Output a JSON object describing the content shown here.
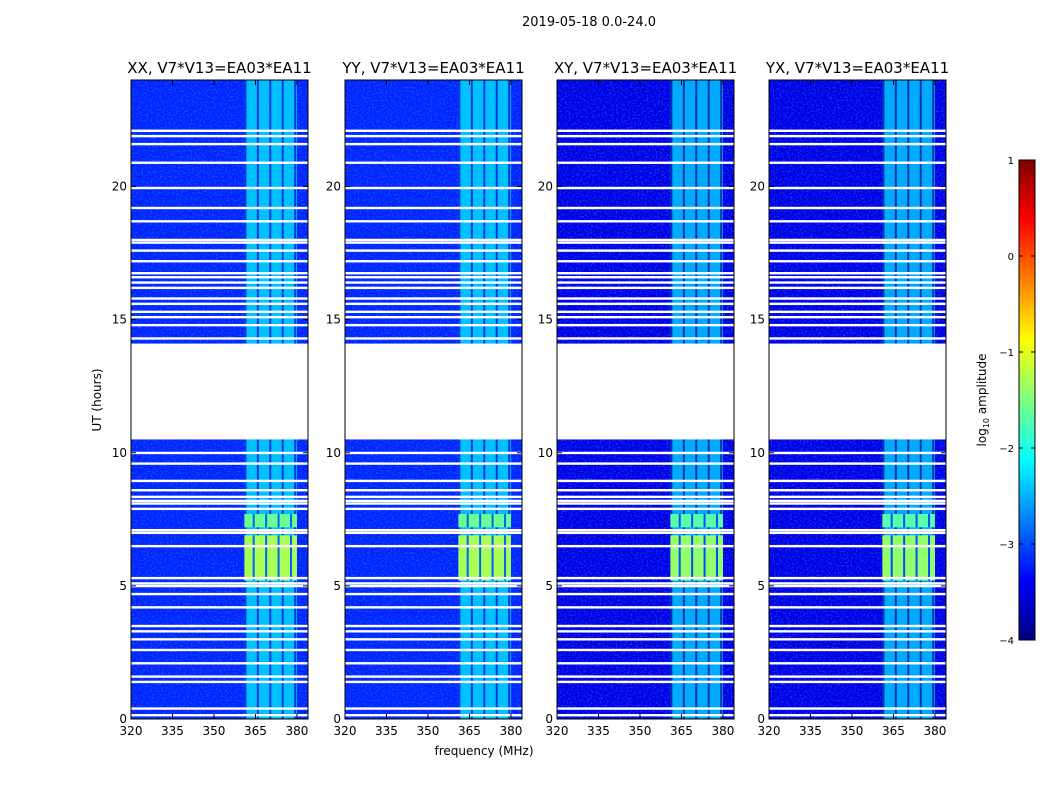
{
  "figure": {
    "suptitle": "2019-05-18 0.0-24.0",
    "xlabel": "frequency (MHz)",
    "ylabel": "UT (hours)"
  },
  "colorbar": {
    "label_prefix": "log",
    "label_sub": "10",
    "label_suffix": " amplitude",
    "range": [
      -4,
      1
    ],
    "ticks": [
      "1",
      "0",
      "−1",
      "−2",
      "−3",
      "−4"
    ],
    "tick_values": [
      1,
      0,
      -1,
      -2,
      -3,
      -4
    ],
    "colormap": "jet",
    "colors": [
      "#00007f",
      "#0000ff",
      "#007fff",
      "#00ffff",
      "#7fff7f",
      "#ffff00",
      "#ff7f00",
      "#ff0000",
      "#7f0000"
    ]
  },
  "chart_data": [
    {
      "type": "heatmap",
      "title": "XX, V7*V13=EA03*EA11",
      "xlabel": "frequency (MHz)",
      "ylabel": "UT (hours)",
      "xlim": [
        320,
        384
      ],
      "ylim": [
        0,
        24
      ],
      "xticks": [
        "320",
        "335",
        "350",
        "365",
        "380"
      ],
      "xtick_values": [
        320,
        335,
        350,
        365,
        380
      ],
      "yticks": [
        "0",
        "5",
        "10",
        "15",
        "20"
      ],
      "ytick_values": [
        0,
        5,
        10,
        15,
        20
      ],
      "z_label": "log10 amplitude",
      "background_level": -3.2,
      "rfi_band_mhz": [
        361,
        380
      ],
      "rfi_level": -2.3,
      "rfi_strong_hours": [
        [
          5.2,
          6.9,
          -1.3
        ],
        [
          7.2,
          7.7,
          -1.6
        ]
      ],
      "no_data_hours": [
        [
          10.5,
          14.1
        ]
      ],
      "flagged_hours": [
        0.15,
        0.4,
        1.4,
        1.6,
        2.1,
        2.6,
        3.0,
        3.3,
        3.5,
        4.2,
        4.7,
        5.0,
        5.1,
        5.3,
        6.5,
        7.0,
        7.1,
        7.9,
        8.1,
        8.2,
        8.35,
        8.6,
        8.95,
        9.6,
        10.0,
        14.3,
        14.8,
        15.1,
        15.3,
        15.6,
        15.8,
        16.2,
        16.4,
        16.6,
        16.75,
        17.2,
        17.6,
        17.9,
        18.0,
        18.7,
        19.2,
        19.95,
        20.9,
        21.6,
        21.9,
        22.1
      ]
    },
    {
      "type": "heatmap",
      "title": "YY, V7*V13=EA03*EA11",
      "xlabel": "frequency (MHz)",
      "ylabel": "UT (hours)",
      "xlim": [
        320,
        384
      ],
      "ylim": [
        0,
        24
      ],
      "xticks": [
        "320",
        "335",
        "350",
        "365",
        "380"
      ],
      "xtick_values": [
        320,
        335,
        350,
        365,
        380
      ],
      "yticks": [
        "0",
        "5",
        "10",
        "15",
        "20"
      ],
      "ytick_values": [
        0,
        5,
        10,
        15,
        20
      ],
      "z_label": "log10 amplitude",
      "background_level": -3.2,
      "rfi_band_mhz": [
        361,
        380
      ],
      "rfi_level": -2.3,
      "rfi_strong_hours": [
        [
          5.2,
          6.9,
          -1.3
        ],
        [
          7.2,
          7.7,
          -1.6
        ]
      ],
      "no_data_hours": [
        [
          10.5,
          14.1
        ]
      ],
      "flagged_hours": [
        0.15,
        0.4,
        1.4,
        1.6,
        2.1,
        2.6,
        3.0,
        3.3,
        3.5,
        4.2,
        4.7,
        5.0,
        5.1,
        5.3,
        6.5,
        7.0,
        7.1,
        7.9,
        8.1,
        8.2,
        8.35,
        8.6,
        8.95,
        9.6,
        10.0,
        14.3,
        14.8,
        15.1,
        15.3,
        15.6,
        15.8,
        16.2,
        16.4,
        16.6,
        16.75,
        17.2,
        17.6,
        17.9,
        18.0,
        18.7,
        19.2,
        19.95,
        20.9,
        21.6,
        21.9,
        22.1
      ]
    },
    {
      "type": "heatmap",
      "title": "XY, V7*V13=EA03*EA11",
      "xlabel": "frequency (MHz)",
      "ylabel": "UT (hours)",
      "xlim": [
        320,
        384
      ],
      "ylim": [
        0,
        24
      ],
      "xticks": [
        "320",
        "335",
        "350",
        "365",
        "380"
      ],
      "xtick_values": [
        320,
        335,
        350,
        365,
        380
      ],
      "yticks": [
        "0",
        "5",
        "10",
        "15",
        "20"
      ],
      "ytick_values": [
        0,
        5,
        10,
        15,
        20
      ],
      "z_label": "log10 amplitude",
      "background_level": -3.5,
      "rfi_band_mhz": [
        361,
        380
      ],
      "rfi_level": -2.4,
      "rfi_strong_hours": [
        [
          5.2,
          6.9,
          -1.4
        ],
        [
          7.2,
          7.7,
          -1.7
        ]
      ],
      "no_data_hours": [
        [
          10.5,
          14.1
        ]
      ],
      "flagged_hours": [
        0.15,
        0.4,
        1.4,
        1.6,
        2.1,
        2.6,
        3.0,
        3.3,
        3.5,
        4.2,
        4.7,
        5.0,
        5.1,
        5.3,
        6.5,
        7.0,
        7.1,
        7.9,
        8.1,
        8.2,
        8.35,
        8.6,
        8.95,
        9.6,
        10.0,
        14.3,
        14.8,
        15.1,
        15.3,
        15.6,
        15.8,
        16.2,
        16.4,
        16.6,
        16.75,
        17.2,
        17.6,
        17.9,
        18.0,
        18.7,
        19.2,
        19.95,
        20.9,
        21.6,
        21.9,
        22.1
      ]
    },
    {
      "type": "heatmap",
      "title": "YX, V7*V13=EA03*EA11",
      "xlabel": "frequency (MHz)",
      "ylabel": "UT (hours)",
      "xlim": [
        320,
        384
      ],
      "ylim": [
        0,
        24
      ],
      "xticks": [
        "320",
        "335",
        "350",
        "365",
        "380"
      ],
      "xtick_values": [
        320,
        335,
        350,
        365,
        380
      ],
      "yticks": [
        "0",
        "5",
        "10",
        "15",
        "20"
      ],
      "ytick_values": [
        0,
        5,
        10,
        15,
        20
      ],
      "z_label": "log10 amplitude",
      "background_level": -3.5,
      "rfi_band_mhz": [
        361,
        380
      ],
      "rfi_level": -2.4,
      "rfi_strong_hours": [
        [
          5.2,
          6.9,
          -1.4
        ],
        [
          7.2,
          7.7,
          -1.7
        ]
      ],
      "no_data_hours": [
        [
          10.5,
          14.1
        ]
      ],
      "flagged_hours": [
        0.15,
        0.4,
        1.4,
        1.6,
        2.1,
        2.6,
        3.0,
        3.3,
        3.5,
        4.2,
        4.7,
        5.0,
        5.1,
        5.3,
        6.5,
        7.0,
        7.1,
        7.9,
        8.1,
        8.2,
        8.35,
        8.6,
        8.95,
        9.6,
        10.0,
        14.3,
        14.8,
        15.1,
        15.3,
        15.6,
        15.8,
        16.2,
        16.4,
        16.6,
        16.75,
        17.2,
        17.6,
        17.9,
        18.0,
        18.7,
        19.2,
        19.95,
        20.9,
        21.6,
        21.9,
        22.1
      ]
    }
  ]
}
